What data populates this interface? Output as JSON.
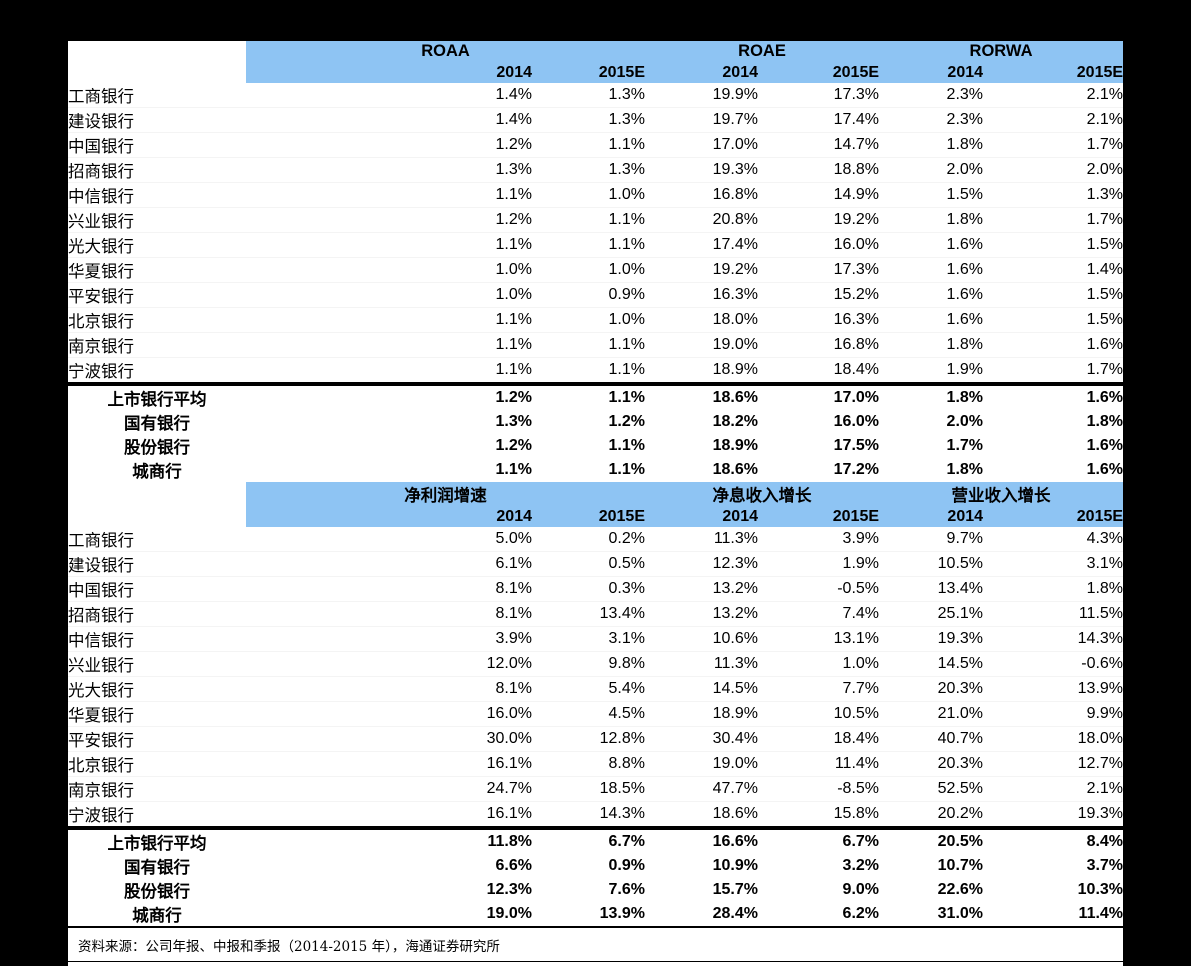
{
  "colors": {
    "background": "#000000",
    "panel": "#ffffff",
    "header_blue": "#8ec4f3"
  },
  "table": {
    "sections": [
      {
        "groups": [
          "ROAA",
          "ROAE",
          "RORWA"
        ],
        "years": [
          "2014",
          "2015E",
          "2014",
          "2015E",
          "2014",
          "2015E"
        ],
        "rows": [
          {
            "label": "工商银行",
            "values": [
              "1.4%",
              "1.3%",
              "19.9%",
              "17.3%",
              "2.3%",
              "2.1%"
            ]
          },
          {
            "label": "建设银行",
            "values": [
              "1.4%",
              "1.3%",
              "19.7%",
              "17.4%",
              "2.3%",
              "2.1%"
            ]
          },
          {
            "label": "中国银行",
            "values": [
              "1.2%",
              "1.1%",
              "17.0%",
              "14.7%",
              "1.8%",
              "1.7%"
            ]
          },
          {
            "label": "招商银行",
            "values": [
              "1.3%",
              "1.3%",
              "19.3%",
              "18.8%",
              "2.0%",
              "2.0%"
            ]
          },
          {
            "label": "中信银行",
            "values": [
              "1.1%",
              "1.0%",
              "16.8%",
              "14.9%",
              "1.5%",
              "1.3%"
            ]
          },
          {
            "label": "兴业银行",
            "values": [
              "1.2%",
              "1.1%",
              "20.8%",
              "19.2%",
              "1.8%",
              "1.7%"
            ]
          },
          {
            "label": "光大银行",
            "values": [
              "1.1%",
              "1.1%",
              "17.4%",
              "16.0%",
              "1.6%",
              "1.5%"
            ]
          },
          {
            "label": "华夏银行",
            "values": [
              "1.0%",
              "1.0%",
              "19.2%",
              "17.3%",
              "1.6%",
              "1.4%"
            ]
          },
          {
            "label": "平安银行",
            "values": [
              "1.0%",
              "0.9%",
              "16.3%",
              "15.2%",
              "1.6%",
              "1.5%"
            ]
          },
          {
            "label": "北京银行",
            "values": [
              "1.1%",
              "1.0%",
              "18.0%",
              "16.3%",
              "1.6%",
              "1.5%"
            ]
          },
          {
            "label": "南京银行",
            "values": [
              "1.1%",
              "1.1%",
              "19.0%",
              "16.8%",
              "1.8%",
              "1.6%"
            ]
          },
          {
            "label": "宁波银行",
            "values": [
              "1.1%",
              "1.1%",
              "18.9%",
              "18.4%",
              "1.9%",
              "1.7%"
            ]
          }
        ],
        "summary_rows": [
          {
            "label": "上市银行平均",
            "values": [
              "1.2%",
              "1.1%",
              "18.6%",
              "17.0%",
              "1.8%",
              "1.6%"
            ]
          },
          {
            "label": "国有银行",
            "values": [
              "1.3%",
              "1.2%",
              "18.2%",
              "16.0%",
              "2.0%",
              "1.8%"
            ]
          },
          {
            "label": "股份银行",
            "values": [
              "1.2%",
              "1.1%",
              "18.9%",
              "17.5%",
              "1.7%",
              "1.6%"
            ]
          },
          {
            "label": "城商行",
            "values": [
              "1.1%",
              "1.1%",
              "18.6%",
              "17.2%",
              "1.8%",
              "1.6%"
            ]
          }
        ]
      },
      {
        "groups": [
          "净利润增速",
          "净息收入增长",
          "营业收入增长"
        ],
        "years": [
          "2014",
          "2015E",
          "2014",
          "2015E",
          "2014",
          "2015E"
        ],
        "rows": [
          {
            "label": "工商银行",
            "values": [
              "5.0%",
              "0.2%",
              "11.3%",
              "3.9%",
              "9.7%",
              "4.3%"
            ]
          },
          {
            "label": "建设银行",
            "values": [
              "6.1%",
              "0.5%",
              "12.3%",
              "1.9%",
              "10.5%",
              "3.1%"
            ]
          },
          {
            "label": "中国银行",
            "values": [
              "8.1%",
              "0.3%",
              "13.2%",
              "-0.5%",
              "13.4%",
              "1.8%"
            ]
          },
          {
            "label": "招商银行",
            "values": [
              "8.1%",
              "13.4%",
              "13.2%",
              "7.4%",
              "25.1%",
              "11.5%"
            ]
          },
          {
            "label": "中信银行",
            "values": [
              "3.9%",
              "3.1%",
              "10.6%",
              "13.1%",
              "19.3%",
              "14.3%"
            ]
          },
          {
            "label": "兴业银行",
            "values": [
              "12.0%",
              "9.8%",
              "11.3%",
              "1.0%",
              "14.5%",
              "-0.6%"
            ]
          },
          {
            "label": "光大银行",
            "values": [
              "8.1%",
              "5.4%",
              "14.5%",
              "7.7%",
              "20.3%",
              "13.9%"
            ]
          },
          {
            "label": "华夏银行",
            "values": [
              "16.0%",
              "4.5%",
              "18.9%",
              "10.5%",
              "21.0%",
              "9.9%"
            ]
          },
          {
            "label": "平安银行",
            "values": [
              "30.0%",
              "12.8%",
              "30.4%",
              "18.4%",
              "40.7%",
              "18.0%"
            ]
          },
          {
            "label": "北京银行",
            "values": [
              "16.1%",
              "8.8%",
              "19.0%",
              "11.4%",
              "20.3%",
              "12.7%"
            ]
          },
          {
            "label": "南京银行",
            "values": [
              "24.7%",
              "18.5%",
              "47.7%",
              "-8.5%",
              "52.5%",
              "2.1%"
            ]
          },
          {
            "label": "宁波银行",
            "values": [
              "16.1%",
              "14.3%",
              "18.6%",
              "15.8%",
              "20.2%",
              "19.3%"
            ]
          }
        ],
        "summary_rows": [
          {
            "label": "上市银行平均",
            "values": [
              "11.8%",
              "6.7%",
              "16.6%",
              "6.7%",
              "20.5%",
              "8.4%"
            ]
          },
          {
            "label": "国有银行",
            "values": [
              "6.6%",
              "0.9%",
              "10.9%",
              "3.2%",
              "10.7%",
              "3.7%"
            ]
          },
          {
            "label": "股份银行",
            "values": [
              "12.3%",
              "7.6%",
              "15.7%",
              "9.0%",
              "22.6%",
              "10.3%"
            ]
          },
          {
            "label": "城商行",
            "values": [
              "19.0%",
              "13.9%",
              "28.4%",
              "6.2%",
              "31.0%",
              "11.4%"
            ]
          }
        ]
      }
    ],
    "source_note": "资料来源：公司年报、中报和季报（2014-2015 年），海通证券研究所"
  }
}
